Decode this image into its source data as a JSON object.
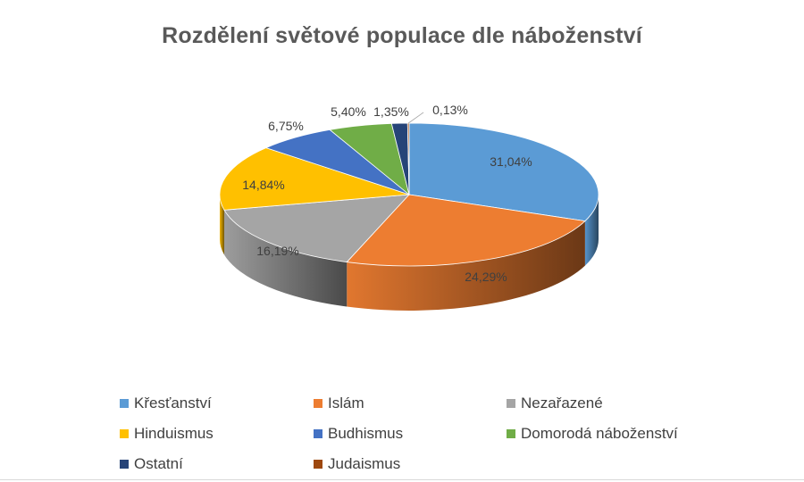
{
  "chart_data": {
    "type": "pie",
    "title": "Rozdělení světové populace dle náboženství",
    "legend_position": "bottom",
    "style": "3d",
    "slices": [
      {
        "label": "Křesťanství",
        "value": 31.04,
        "data_label": "31,04%",
        "color": "#5B9BD5"
      },
      {
        "label": "Islám",
        "value": 24.29,
        "data_label": "24,29%",
        "color": "#ED7D31"
      },
      {
        "label": "Nezařazené",
        "value": 16.19,
        "data_label": "16,19%",
        "color": "#A5A5A5"
      },
      {
        "label": "Hinduismus",
        "value": 14.84,
        "data_label": "14,84%",
        "color": "#FFC000"
      },
      {
        "label": "Budhismus",
        "value": 6.75,
        "data_label": "6,75%",
        "color": "#4472C4"
      },
      {
        "label": "Domorodá náboženství",
        "value": 5.4,
        "data_label": "5,40%",
        "color": "#70AD47"
      },
      {
        "label": "Ostatní",
        "value": 1.35,
        "data_label": "1,35%",
        "color": "#264478"
      },
      {
        "label": "Judaismus",
        "value": 0.13,
        "data_label": "0,13%",
        "color": "#9E480E"
      }
    ]
  }
}
